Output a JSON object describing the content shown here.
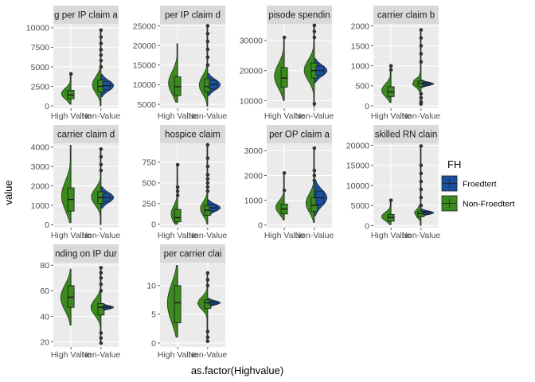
{
  "chart_data": {
    "type": "violin-box",
    "xlabel": "as.factor(Highvalue)",
    "ylabel": "value",
    "categories": [
      "High Value",
      "Non-Value"
    ],
    "legend": {
      "title": "FH",
      "entries": [
        {
          "name": "Froedtert",
          "color": "#1b4f9c"
        },
        {
          "name": "Non-Froedtert",
          "color": "#3a8a1e"
        }
      ],
      "placement": "right"
    },
    "grid": true,
    "panels": [
      {
        "strip": "g per IP claim a",
        "ylim": [
          -300,
          10500
        ],
        "ticks": [
          "0",
          "2500",
          "5000",
          "7500",
          "10000"
        ],
        "tick_values": [
          0,
          2500,
          5000,
          7500,
          10000
        ],
        "high": {
          "min": 200,
          "q1": 900,
          "median": 1400,
          "q3": 2000,
          "max": 4100,
          "outliers": [
            4100
          ]
        },
        "non": {
          "min": 0,
          "q1": 1800,
          "median": 2500,
          "q3": 3300,
          "max": 9700,
          "outliers": [
            5000,
            5800,
            6500,
            7200,
            8000,
            8800,
            9700
          ]
        },
        "froed": {
          "center": 2600,
          "spread": 900
        }
      },
      {
        "strip": "per IP claim d",
        "ylim": [
          4000,
          25500
        ],
        "ticks": [
          "5000",
          "10000",
          "15000",
          "20000",
          "25000"
        ],
        "tick_values": [
          5000,
          10000,
          15000,
          20000,
          25000
        ],
        "high": {
          "min": 5500,
          "q1": 7200,
          "median": 9500,
          "q3": 12000,
          "max": 20500,
          "outliers": []
        },
        "non": {
          "min": 4500,
          "q1": 8200,
          "median": 9500,
          "q3": 11500,
          "max": 25000,
          "outliers": [
            15000,
            17000,
            19000,
            21000,
            23000,
            25000
          ]
        },
        "froed": {
          "center": 10000,
          "spread": 1800
        }
      },
      {
        "strip": "pisode spendin",
        "ylim": [
          7500,
          35500
        ],
        "ticks": [
          "10000",
          "20000",
          "30000"
        ],
        "tick_values": [
          10000,
          20000,
          30000
        ],
        "high": {
          "min": 10000,
          "q1": 14500,
          "median": 17500,
          "q3": 21000,
          "max": 31000,
          "outliers": [
            31000
          ]
        },
        "non": {
          "min": 8000,
          "q1": 17500,
          "median": 20000,
          "q3": 22500,
          "max": 35000,
          "outliers": [
            9000,
            31000,
            33000,
            35000
          ]
        },
        "froed": {
          "center": 20000,
          "spread": 2500
        }
      },
      {
        "strip": "carrier claim b",
        "ylim": [
          -60,
          2050
        ],
        "ticks": [
          "0",
          "500",
          "1000",
          "1500",
          "2000"
        ],
        "tick_values": [
          0,
          500,
          1000,
          1500,
          2000
        ],
        "high": {
          "min": 80,
          "q1": 230,
          "median": 350,
          "q3": 480,
          "max": 1000,
          "outliers": [
            900,
            1000
          ]
        },
        "non": {
          "min": 0,
          "q1": 480,
          "median": 560,
          "q3": 620,
          "max": 1900,
          "outliers": [
            50,
            100,
            200,
            300,
            1100,
            1300,
            1500,
            1700,
            1900
          ]
        },
        "froed": {
          "center": 550,
          "spread": 60
        }
      },
      {
        "strip": "carrier claim d",
        "ylim": [
          -150,
          4200
        ],
        "ticks": [
          "0",
          "1000",
          "2000",
          "3000",
          "4000"
        ],
        "tick_values": [
          0,
          1000,
          2000,
          3000,
          4000
        ],
        "high": {
          "min": 100,
          "q1": 700,
          "median": 1300,
          "q3": 1900,
          "max": 4100,
          "outliers": []
        },
        "non": {
          "min": 0,
          "q1": 1100,
          "median": 1400,
          "q3": 1700,
          "max": 3900,
          "outliers": [
            2800,
            3100,
            3500,
            3900
          ]
        },
        "froed": {
          "center": 1400,
          "spread": 350
        }
      },
      {
        "strip": "hospice claim",
        "ylim": [
          -40,
          980
        ],
        "ticks": [
          "0",
          "250",
          "500",
          "750"
        ],
        "tick_values": [
          0,
          250,
          500,
          750
        ],
        "high": {
          "min": 0,
          "q1": 30,
          "median": 80,
          "q3": 180,
          "max": 720,
          "outliers": [
            350,
            400,
            450,
            720
          ]
        },
        "non": {
          "min": 0,
          "q1": 110,
          "median": 170,
          "q3": 230,
          "max": 960,
          "outliers": [
            400,
            450,
            500,
            550,
            600,
            700,
            800,
            960
          ]
        },
        "froed": {
          "center": 200,
          "spread": 60
        }
      },
      {
        "strip": "per OP claim a",
        "ylim": [
          -100,
          3300
        ],
        "ticks": [
          "0",
          "1000",
          "2000",
          "3000"
        ],
        "tick_values": [
          0,
          1000,
          2000,
          3000
        ],
        "high": {
          "min": 200,
          "q1": 450,
          "median": 650,
          "q3": 850,
          "max": 2100,
          "outliers": [
            1400,
            2100
          ]
        },
        "non": {
          "min": 100,
          "q1": 550,
          "median": 800,
          "q3": 1100,
          "max": 3100,
          "outliers": [
            1800,
            2000,
            2200,
            3100
          ]
        },
        "froed": {
          "center": 1100,
          "spread": 450
        }
      },
      {
        "strip": "skilled RN clain",
        "ylim": [
          -500,
          20500
        ],
        "ticks": [
          "0",
          "5000",
          "10000",
          "15000",
          "20000"
        ],
        "tick_values": [
          0,
          5000,
          10000,
          15000,
          20000
        ],
        "high": {
          "min": 200,
          "q1": 1100,
          "median": 2000,
          "q3": 2800,
          "max": 6300,
          "outliers": [
            6300
          ]
        },
        "non": {
          "min": 0,
          "q1": 2200,
          "median": 3000,
          "q3": 3600,
          "max": 19800,
          "outliers": [
            5000,
            7000,
            9000,
            11000,
            13000,
            15000,
            19800
          ]
        },
        "froed": {
          "center": 3200,
          "spread": 600
        }
      },
      {
        "strip": "nding on IP dur",
        "ylim": [
          16,
          82
        ],
        "ticks": [
          "20",
          "40",
          "60",
          "80"
        ],
        "tick_values": [
          20,
          40,
          60,
          80
        ],
        "high": {
          "min": 33,
          "q1": 47,
          "median": 55,
          "q3": 64,
          "max": 77,
          "outliers": []
        },
        "non": {
          "min": 19,
          "q1": 41,
          "median": 47,
          "q3": 50,
          "max": 78,
          "outliers": [
            19,
            23,
            27,
            60,
            65,
            70,
            74,
            78
          ]
        },
        "froed": {
          "center": 47,
          "spread": 2
        }
      },
      {
        "strip": "per carrier clai",
        "ylim": [
          -0.7,
          14
        ],
        "ticks": [
          "0",
          "5",
          "10"
        ],
        "tick_values": [
          0,
          5,
          10
        ],
        "high": {
          "min": 1,
          "q1": 3.5,
          "median": 7,
          "q3": 10,
          "max": 13.5,
          "outliers": []
        },
        "non": {
          "min": 0.3,
          "q1": 6,
          "median": 7,
          "q3": 7.5,
          "max": 12.2,
          "outliers": [
            0.3,
            1,
            2,
            10,
            11,
            12.2
          ]
        },
        "froed": {
          "center": 7,
          "spread": 0.5
        }
      }
    ]
  }
}
